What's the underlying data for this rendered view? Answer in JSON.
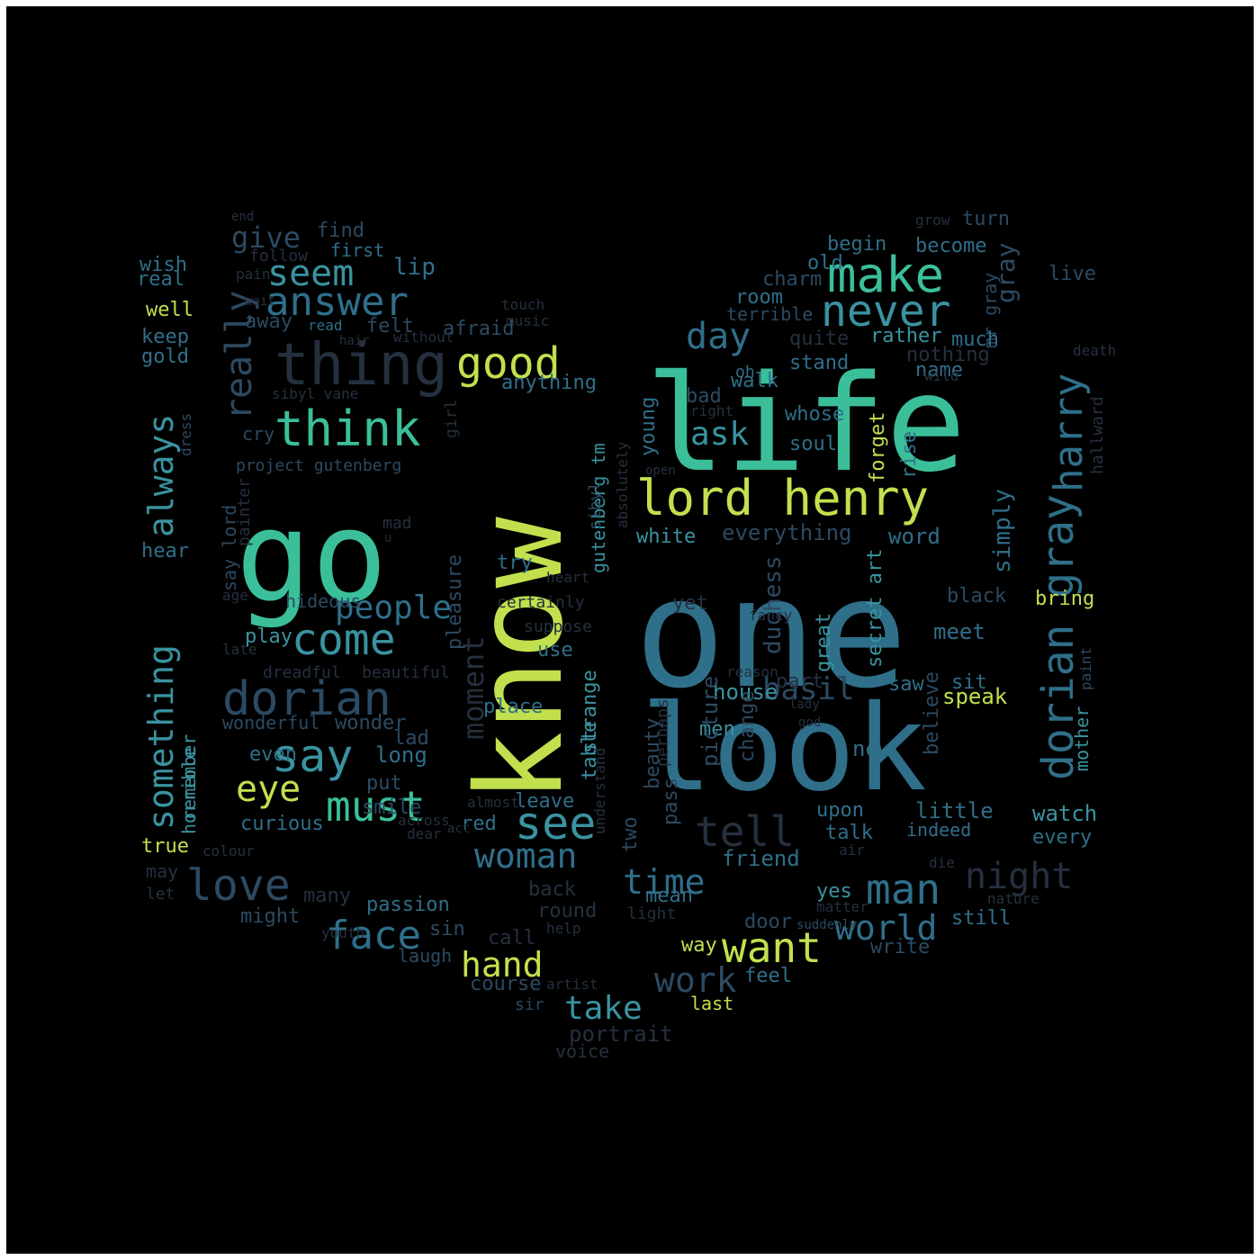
{
  "background": "#000000",
  "palette": [
    "#25303f",
    "#2c4a62",
    "#2f6f8a",
    "#3a93a0",
    "#3bbf9a",
    "#7dcf6f",
    "#c2e04e"
  ],
  "words": [
    {
      "text": "one",
      "color": "#2f6f8a"
    },
    {
      "text": "know",
      "color": "#c2e04e"
    },
    {
      "text": "life",
      "color": "#3bbf9a"
    },
    {
      "text": "look",
      "color": "#2f6f8a"
    },
    {
      "text": "go",
      "color": "#3bbf9a"
    },
    {
      "text": "thing",
      "color": "#25303f"
    },
    {
      "text": "lord henry",
      "color": "#c2e04e"
    },
    {
      "text": "think",
      "color": "#3bbf9a"
    },
    {
      "text": "make",
      "color": "#3bbf9a"
    },
    {
      "text": "harry",
      "color": "#2f6f8a"
    },
    {
      "text": "dorian gray",
      "color": "#2f6f8a"
    },
    {
      "text": "something",
      "color": "#3a93a0"
    },
    {
      "text": "always",
      "color": "#3a93a0"
    },
    {
      "text": "good",
      "color": "#c2e04e"
    },
    {
      "text": "never",
      "color": "#3a93a0"
    },
    {
      "text": "answer",
      "color": "#2f6f8a"
    },
    {
      "text": "seem",
      "color": "#3a93a0"
    },
    {
      "text": "really",
      "color": "#2c4a62"
    },
    {
      "text": "come",
      "color": "#3a93a0"
    },
    {
      "text": "dorian",
      "color": "#2c4a62"
    },
    {
      "text": "say",
      "color": "#3a93a0"
    },
    {
      "text": "must",
      "color": "#3bbf9a"
    },
    {
      "text": "see",
      "color": "#3a93a0"
    },
    {
      "text": "love",
      "color": "#2c4a62"
    },
    {
      "text": "face",
      "color": "#2f6f8a"
    },
    {
      "text": "woman",
      "color": "#2f6f8a"
    },
    {
      "text": "people",
      "color": "#2f6f8a"
    },
    {
      "text": "eye",
      "color": "#c2e04e"
    },
    {
      "text": "tell",
      "color": "#25303f"
    },
    {
      "text": "man",
      "color": "#2f6f8a"
    },
    {
      "text": "night",
      "color": "#25303f"
    },
    {
      "text": "world",
      "color": "#2f6f8a"
    },
    {
      "text": "want",
      "color": "#c2e04e"
    },
    {
      "text": "time",
      "color": "#2f6f8a"
    },
    {
      "text": "work",
      "color": "#2c4a62"
    },
    {
      "text": "take",
      "color": "#3a93a0"
    },
    {
      "text": "hand",
      "color": "#c2e04e"
    },
    {
      "text": "day",
      "color": "#2f6f8a"
    },
    {
      "text": "ask",
      "color": "#3a93a0"
    },
    {
      "text": "basil",
      "color": "#2c4a62"
    },
    {
      "text": "moment",
      "color": "#25303f"
    },
    {
      "text": "give",
      "color": "#2c4a62"
    },
    {
      "text": "gutenberg tm",
      "color": "#3a93a0"
    },
    {
      "text": "pleasure",
      "color": "#2c4a62"
    },
    {
      "text": "strange",
      "color": "#3a93a0"
    },
    {
      "text": "project gutenberg",
      "color": "#2c4a62"
    },
    {
      "text": "portrait",
      "color": "#25303f"
    },
    {
      "text": "voice",
      "color": "#25303f"
    },
    {
      "text": "sir",
      "color": "#2c4a62"
    },
    {
      "text": "last",
      "color": "#c2e04e"
    },
    {
      "text": "course",
      "color": "#2c4a62"
    },
    {
      "text": "laugh",
      "color": "#2c4a62"
    },
    {
      "text": "call",
      "color": "#25303f"
    },
    {
      "text": "sin",
      "color": "#2c4a62"
    },
    {
      "text": "round",
      "color": "#25303f"
    },
    {
      "text": "back",
      "color": "#25303f"
    },
    {
      "text": "passion",
      "color": "#2f6f8a"
    },
    {
      "text": "might",
      "color": "#2c4a62"
    },
    {
      "text": "many",
      "color": "#25303f"
    },
    {
      "text": "curious",
      "color": "#2f6f8a"
    },
    {
      "text": "smile",
      "color": "#2c4a62"
    },
    {
      "text": "put",
      "color": "#2c4a62"
    },
    {
      "text": "long",
      "color": "#2f6f8a"
    },
    {
      "text": "even",
      "color": "#2f6f8a"
    },
    {
      "text": "lad",
      "color": "#2c4a62"
    },
    {
      "text": "wonder",
      "color": "#2c4a62"
    },
    {
      "text": "wonderful",
      "color": "#2c4a62"
    },
    {
      "text": "dreadful",
      "color": "#25303f"
    },
    {
      "text": "beautiful",
      "color": "#25303f"
    },
    {
      "text": "play",
      "color": "#3a93a0"
    },
    {
      "text": "horrible",
      "color": "#3a93a0"
    },
    {
      "text": "remember",
      "color": "#3a93a0"
    },
    {
      "text": "hear",
      "color": "#2f6f8a"
    },
    {
      "text": "true",
      "color": "#c2e04e"
    },
    {
      "text": "may",
      "color": "#25303f"
    },
    {
      "text": "let",
      "color": "#25303f"
    },
    {
      "text": "keep",
      "color": "#2f6f8a"
    },
    {
      "text": "gold",
      "color": "#2f6f8a"
    },
    {
      "text": "well",
      "color": "#c2e04e"
    },
    {
      "text": "real",
      "color": "#2f6f8a"
    },
    {
      "text": "wish",
      "color": "#2f6f8a"
    },
    {
      "text": "find",
      "color": "#2c4a62"
    },
    {
      "text": "follow",
      "color": "#25303f"
    },
    {
      "text": "first",
      "color": "#2f6f8a"
    },
    {
      "text": "lip",
      "color": "#2f6f8a"
    },
    {
      "text": "away",
      "color": "#2c4a62"
    },
    {
      "text": "felt",
      "color": "#2c4a62"
    },
    {
      "text": "afraid",
      "color": "#2c4a62"
    },
    {
      "text": "read",
      "color": "#2f6f8a"
    },
    {
      "text": "music",
      "color": "#25303f"
    },
    {
      "text": "touch",
      "color": "#25303f"
    },
    {
      "text": "without",
      "color": "#25303f"
    },
    {
      "text": "anything",
      "color": "#2f6f8a"
    },
    {
      "text": "sibyl vane",
      "color": "#25303f"
    },
    {
      "text": "cry",
      "color": "#2c4a62"
    },
    {
      "text": "say lord",
      "color": "#2c4a62"
    },
    {
      "text": "hideous",
      "color": "#2c4a62"
    },
    {
      "text": "painter",
      "color": "#25303f"
    },
    {
      "text": "late",
      "color": "#25303f"
    },
    {
      "text": "age",
      "color": "#25303f"
    },
    {
      "text": "use",
      "color": "#2f6f8a"
    },
    {
      "text": "suppose",
      "color": "#25303f"
    },
    {
      "text": "place",
      "color": "#2f6f8a"
    },
    {
      "text": "try",
      "color": "#2f6f8a"
    },
    {
      "text": "certainly",
      "color": "#25303f"
    },
    {
      "text": "table",
      "color": "#3a93a0"
    },
    {
      "text": "leave",
      "color": "#2f6f8a"
    },
    {
      "text": "red",
      "color": "#2f6f8a"
    },
    {
      "text": "almost",
      "color": "#25303f"
    },
    {
      "text": "across",
      "color": "#25303f"
    },
    {
      "text": "dear",
      "color": "#25303f"
    },
    {
      "text": "girl",
      "color": "#25303f"
    },
    {
      "text": "sibyl",
      "color": "#2c4a62"
    },
    {
      "text": "absolutely",
      "color": "#25303f"
    },
    {
      "text": "young",
      "color": "#2f6f8a"
    },
    {
      "text": "understand",
      "color": "#25303f"
    },
    {
      "text": "two",
      "color": "#2c4a62"
    },
    {
      "text": "mean",
      "color": "#2f6f8a"
    },
    {
      "text": "light",
      "color": "#25303f"
    },
    {
      "text": "white",
      "color": "#3a93a0"
    },
    {
      "text": "everything",
      "color": "#2c4a62"
    },
    {
      "text": "word",
      "color": "#2f6f8a"
    },
    {
      "text": "simply",
      "color": "#2f6f8a"
    },
    {
      "text": "bring",
      "color": "#c2e04e"
    },
    {
      "text": "meet",
      "color": "#2f6f8a"
    },
    {
      "text": "speak",
      "color": "#c2e04e"
    },
    {
      "text": "sit",
      "color": "#2f6f8a"
    },
    {
      "text": "saw",
      "color": "#2f6f8a"
    },
    {
      "text": "believe",
      "color": "#2c4a62"
    },
    {
      "text": "secret art",
      "color": "#3a93a0"
    },
    {
      "text": "great",
      "color": "#3a93a0"
    },
    {
      "text": "duchess",
      "color": "#2c4a62"
    },
    {
      "text": "yet",
      "color": "#25303f"
    },
    {
      "text": "house",
      "color": "#3a93a0"
    },
    {
      "text": "men",
      "color": "#3a93a0"
    },
    {
      "text": "picture",
      "color": "#2c4a62"
    },
    {
      "text": "change",
      "color": "#2c4a62"
    },
    {
      "text": "beauty",
      "color": "#2c4a62"
    },
    {
      "text": "perhaps",
      "color": "#25303f"
    },
    {
      "text": "pass",
      "color": "#2c4a62"
    },
    {
      "text": "friend",
      "color": "#2f6f8a"
    },
    {
      "text": "talk",
      "color": "#2f6f8a"
    },
    {
      "text": "upon",
      "color": "#2f6f8a"
    },
    {
      "text": "new",
      "color": "#2f6f8a"
    },
    {
      "text": "little",
      "color": "#2f6f8a"
    },
    {
      "text": "indeed",
      "color": "#2f6f8a"
    },
    {
      "text": "watch",
      "color": "#3a93a0"
    },
    {
      "text": "every",
      "color": "#2f6f8a"
    },
    {
      "text": "yes",
      "color": "#3a93a0"
    },
    {
      "text": "matter",
      "color": "#25303f"
    },
    {
      "text": "still",
      "color": "#2f6f8a"
    },
    {
      "text": "door",
      "color": "#2c4a62"
    },
    {
      "text": "write",
      "color": "#2c4a62"
    },
    {
      "text": "way",
      "color": "#c2e04e"
    },
    {
      "text": "feel",
      "color": "#2f6f8a"
    },
    {
      "text": "old",
      "color": "#2f6f8a"
    },
    {
      "text": "charm",
      "color": "#2c4a62"
    },
    {
      "text": "room",
      "color": "#2f6f8a"
    },
    {
      "text": "terrible",
      "color": "#2c4a62"
    },
    {
      "text": "begin",
      "color": "#2f6f8a"
    },
    {
      "text": "become",
      "color": "#2f6f8a"
    },
    {
      "text": "turn",
      "color": "#2c4a62"
    },
    {
      "text": "grow",
      "color": "#25303f"
    },
    {
      "text": "live",
      "color": "#2c4a62"
    },
    {
      "text": "gray",
      "color": "#2c4a62"
    },
    {
      "text": "mr gray",
      "color": "#2c4a62"
    },
    {
      "text": "rather",
      "color": "#3a93a0"
    },
    {
      "text": "much",
      "color": "#2f6f8a"
    },
    {
      "text": "quite",
      "color": "#25303f"
    },
    {
      "text": "nothing",
      "color": "#25303f"
    },
    {
      "text": "name",
      "color": "#2f6f8a"
    },
    {
      "text": "stand",
      "color": "#2f6f8a"
    },
    {
      "text": "walk",
      "color": "#2f6f8a"
    },
    {
      "text": "oh",
      "color": "#2f6f8a"
    },
    {
      "text": "whose",
      "color": "#2f6f8a"
    },
    {
      "text": "bad",
      "color": "#2c4a62"
    },
    {
      "text": "right",
      "color": "#25303f"
    },
    {
      "text": "soul",
      "color": "#2f6f8a"
    },
    {
      "text": "forget",
      "color": "#c2e04e"
    },
    {
      "text": "rise",
      "color": "#2f6f8a"
    },
    {
      "text": "wild",
      "color": "#25303f"
    },
    {
      "text": "hallward",
      "color": "#25303f"
    },
    {
      "text": "mother",
      "color": "#3a93a0"
    },
    {
      "text": "paint",
      "color": "#2c4a62"
    },
    {
      "text": "death",
      "color": "#25303f"
    },
    {
      "text": "end",
      "color": "#25303f"
    },
    {
      "text": "pain",
      "color": "#25303f"
    },
    {
      "text": "wait",
      "color": "#25303f"
    },
    {
      "text": "heart",
      "color": "#25303f"
    },
    {
      "text": "black",
      "color": "#2c4a62"
    },
    {
      "text": "open",
      "color": "#25303f"
    },
    {
      "text": "fancy",
      "color": "#25303f"
    },
    {
      "text": "reason",
      "color": "#25303f"
    },
    {
      "text": "nature",
      "color": "#25303f"
    },
    {
      "text": "die",
      "color": "#25303f"
    },
    {
      "text": "air",
      "color": "#25303f"
    },
    {
      "text": "colour",
      "color": "#25303f"
    },
    {
      "text": "youth",
      "color": "#25303f"
    },
    {
      "text": "help",
      "color": "#25303f"
    },
    {
      "text": "artist",
      "color": "#25303f"
    },
    {
      "text": "act",
      "color": "#25303f"
    },
    {
      "text": "hair",
      "color": "#25303f"
    },
    {
      "text": "mad",
      "color": "#25303f"
    },
    {
      "text": "u",
      "color": "#25303f"
    },
    {
      "text": "god",
      "color": "#25303f"
    },
    {
      "text": "lady",
      "color": "#25303f"
    },
    {
      "text": "part",
      "color": "#25303f"
    },
    {
      "text": "dress",
      "color": "#2c4a62"
    },
    {
      "text": "suddenly",
      "color": "#2c4a62"
    },
    {
      "text": "ah",
      "color": "#25303f"
    }
  ]
}
